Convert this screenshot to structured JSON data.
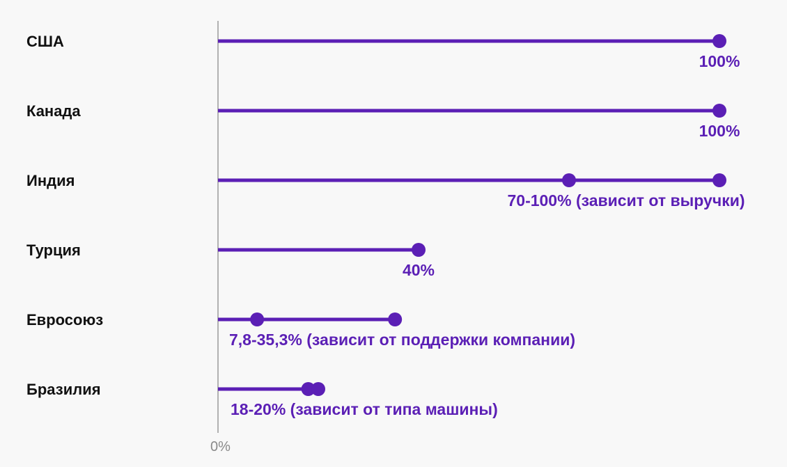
{
  "chart_data": {
    "type": "dumbbell",
    "title": "",
    "xlabel": "",
    "ylabel": "",
    "xlim": [
      0,
      100
    ],
    "x_ticks": [
      "0%"
    ],
    "color": "#5b1fb5",
    "categories": [
      "США",
      "Канада",
      "Индия",
      "Турция",
      "Евросоюз",
      "Бразилия"
    ],
    "series": [
      {
        "category": "США",
        "low": 100,
        "high": 100,
        "label": "100%"
      },
      {
        "category": "Канада",
        "low": 100,
        "high": 100,
        "label": "100%"
      },
      {
        "category": "Индия",
        "low": 70,
        "high": 100,
        "label": "70-100% (зависит от выручки)"
      },
      {
        "category": "Турция",
        "low": 40,
        "high": 40,
        "label": "40%"
      },
      {
        "category": "Евросоюз",
        "low": 7.8,
        "high": 35.3,
        "label": "7,8-35,3% (зависит от поддержки компании)"
      },
      {
        "category": "Бразилия",
        "low": 18,
        "high": 20,
        "label": "18-20% (зависит от типа машины)"
      }
    ]
  }
}
